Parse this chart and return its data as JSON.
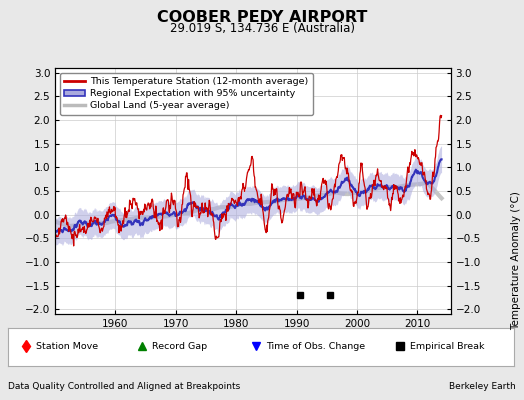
{
  "title": "COOBER PEDY AIRPORT",
  "subtitle": "29.019 S, 134.736 E (Australia)",
  "ylabel": "Temperature Anomaly (°C)",
  "ylim": [
    -2.1,
    3.1
  ],
  "yticks": [
    -2,
    -1.5,
    -1,
    -0.5,
    0,
    0.5,
    1,
    1.5,
    2,
    2.5,
    3
  ],
  "xlim": [
    1950,
    2015.5
  ],
  "xticks": [
    1960,
    1970,
    1980,
    1990,
    2000,
    2010
  ],
  "start_year": 1950,
  "end_year": 2014,
  "empirical_breaks": [
    1990.5,
    1995.5
  ],
  "footer_left": "Data Quality Controlled and Aligned at Breakpoints",
  "footer_right": "Berkeley Earth",
  "bg_color": "#e8e8e8",
  "plot_bg_color": "#ffffff",
  "grid_color": "#cccccc",
  "station_color": "#cc0000",
  "regional_color": "#3333bb",
  "regional_fill_color": "#aaaadd",
  "global_color": "#bbbbbb",
  "legend_station": "This Temperature Station (12-month average)",
  "legend_regional": "Regional Expectation with 95% uncertainty",
  "legend_global": "Global Land (5-year average)"
}
